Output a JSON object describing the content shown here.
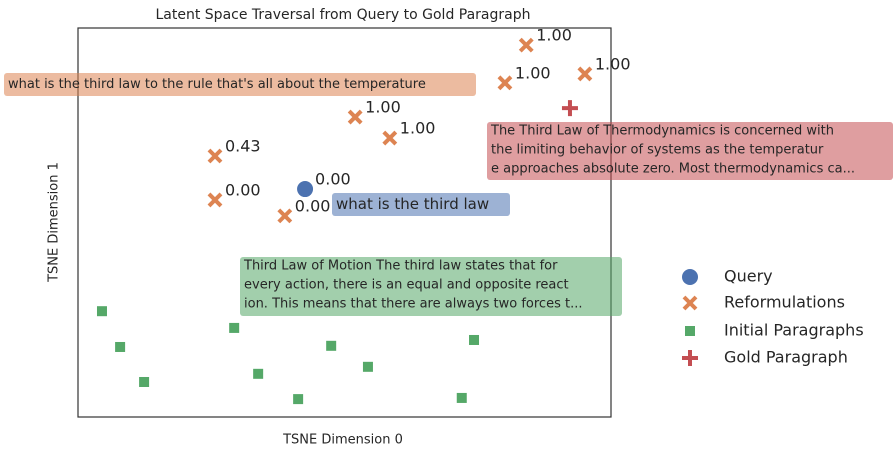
{
  "chart_data": {
    "type": "scatter",
    "title": "Latent Space Traversal from Query to Gold Paragraph",
    "x_label": "TSNE Dimension 0",
    "y_label": "TSNE Dimension 1",
    "xlim": [
      0,
      100
    ],
    "ylim": [
      0,
      100
    ],
    "legend": "right",
    "series": [
      {
        "name": "Query",
        "color": "#4c72b0",
        "marker": "circle",
        "x": [
          42.6
        ],
        "y": [
          58.6
        ],
        "point_labels": [
          "0.00"
        ]
      },
      {
        "name": "Reformulations",
        "color": "#dd8452",
        "marker": "x",
        "x": [
          25.7,
          25.7,
          38.8,
          52.0,
          58.5,
          80.1,
          84.1,
          95.1
        ],
        "y": [
          67.1,
          55.8,
          51.7,
          77.1,
          71.7,
          85.9,
          95.6,
          88.2
        ],
        "point_labels": [
          "0.43",
          "0.00",
          "0.00",
          "1.00",
          "1.00",
          "1.00",
          "1.00",
          "1.00"
        ]
      },
      {
        "name": "Initial Paragraphs",
        "color": "#55a868",
        "marker": "square",
        "x": [
          4.5,
          7.9,
          12.4,
          29.3,
          33.8,
          41.3,
          47.5,
          54.4,
          74.3,
          72.0
        ],
        "y": [
          27.2,
          18.0,
          9.0,
          22.9,
          11.1,
          4.6,
          18.3,
          12.9,
          19.8,
          4.9
        ]
      },
      {
        "name": "Gold Paragraph",
        "color": "#c44e52",
        "marker": "plus",
        "x": [
          92.3
        ],
        "y": [
          79.4
        ]
      }
    ],
    "annotations": [
      {
        "color": "#dd8452",
        "lines": [
          "what is the third law to the rule that's all about the temperature"
        ]
      },
      {
        "color": "#c44e52",
        "lines": [
          "The Third Law of Thermodynamics is concerned with",
          "the limiting behavior of systems as the temperatur",
          "e approaches absolute zero. Most thermodynamics ca..."
        ]
      },
      {
        "color": "#4c72b0",
        "lines": [
          "what is the third law"
        ]
      },
      {
        "color": "#55a868",
        "lines": [
          "Third Law of Motion The third law states that for",
          "every action, there is an equal and opposite react",
          "ion. This means that there are always two forces t..."
        ]
      }
    ]
  }
}
